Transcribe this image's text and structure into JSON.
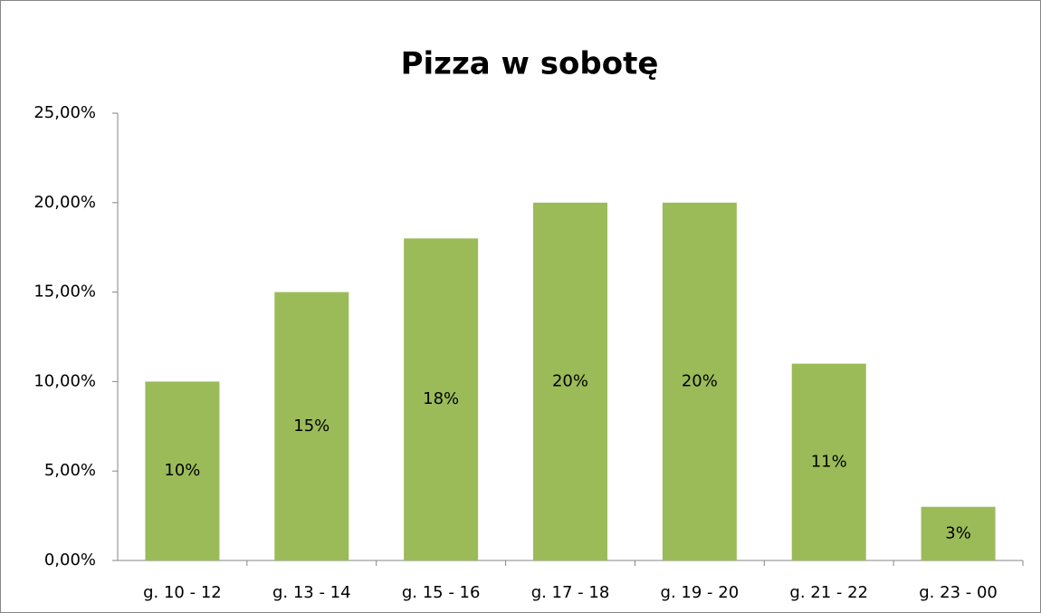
{
  "chart_data": {
    "type": "bar",
    "title": "Pizza w sobotę",
    "categories": [
      "g. 10 - 12",
      "g. 13 - 14",
      "g. 15 - 16",
      "g. 17 - 18",
      "g. 19 - 20",
      "g. 21 - 22",
      "g. 23 - 00"
    ],
    "values": [
      10,
      15,
      18,
      20,
      20,
      11,
      3
    ],
    "value_labels": [
      "10%",
      "15%",
      "18%",
      "20%",
      "20%",
      "11%",
      "3%"
    ],
    "color": "#9bbb59",
    "ylim": [
      0,
      25
    ],
    "yticks": [
      {
        "value": 0,
        "label": "0,00%"
      },
      {
        "value": 5,
        "label": "5,00%"
      },
      {
        "value": 10,
        "label": "10,00%"
      },
      {
        "value": 15,
        "label": "15,00%"
      },
      {
        "value": 20,
        "label": "20,00%"
      },
      {
        "value": 25,
        "label": "25,00%"
      }
    ],
    "grid": false
  }
}
